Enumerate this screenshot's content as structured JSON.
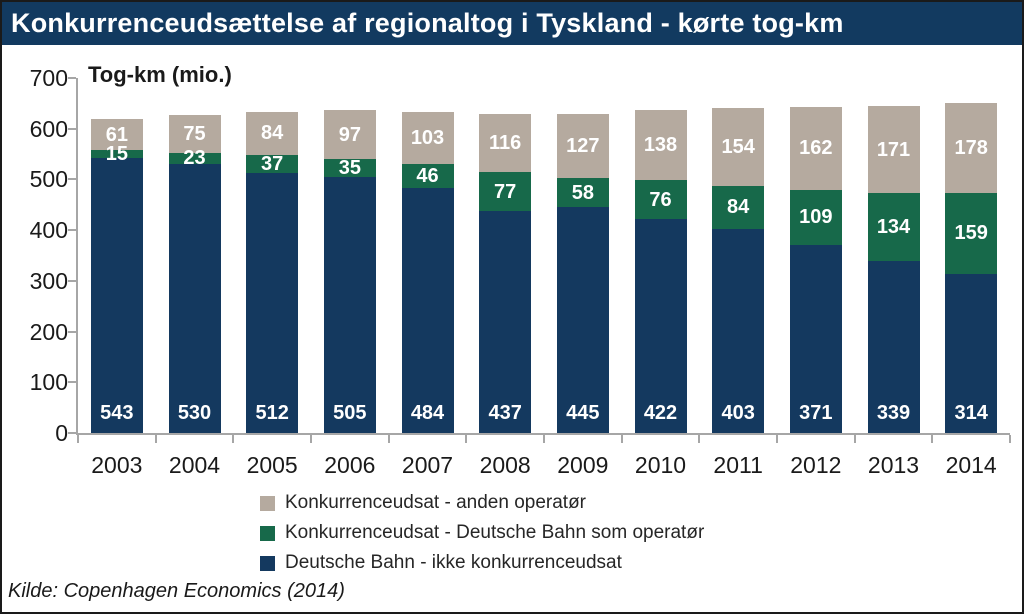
{
  "colors": {
    "header_bg": "#123A60",
    "header_text": "#FFFFFF",
    "axis": "#A6A6A6",
    "text": "#1A1A1A",
    "bar_label": "#FFFFFF"
  },
  "source": "Kilde: Copenhagen Economics (2014)",
  "chart_data": {
    "type": "bar",
    "stacked": true,
    "title": "Konkurrenceudsættelse af regionaltog i Tyskland - kørte tog-km",
    "y_axis_title": "Tog-km (mio.)",
    "xlabel": "",
    "ylabel": "Tog-km (mio.)",
    "categories": [
      "2003",
      "2004",
      "2005",
      "2006",
      "2007",
      "2008",
      "2009",
      "2010",
      "2011",
      "2012",
      "2013",
      "2014"
    ],
    "series": [
      {
        "name": "Konkurrenceudsat - anden operatør",
        "color": "#B5AA9F",
        "label_position": "center",
        "values": [
          61,
          75,
          84,
          97,
          103,
          116,
          127,
          138,
          154,
          162,
          171,
          178
        ]
      },
      {
        "name": "Konkurrenceudsat - Deutsche Bahn som operatør",
        "color": "#17694A",
        "label_position": "center",
        "values": [
          15,
          23,
          37,
          35,
          46,
          77,
          58,
          76,
          84,
          109,
          134,
          159
        ]
      },
      {
        "name": "Deutsche Bahn - ikke konkurrenceudsat",
        "color": "#14395F",
        "label_position": "base",
        "values": [
          543,
          530,
          512,
          505,
          484,
          437,
          445,
          422,
          403,
          371,
          339,
          314
        ]
      }
    ],
    "ylim": [
      0,
      700
    ],
    "yticks": [
      0,
      100,
      200,
      300,
      400,
      500,
      600,
      700
    ],
    "grid": false,
    "legend_position": "bottom",
    "data_labels": true
  }
}
